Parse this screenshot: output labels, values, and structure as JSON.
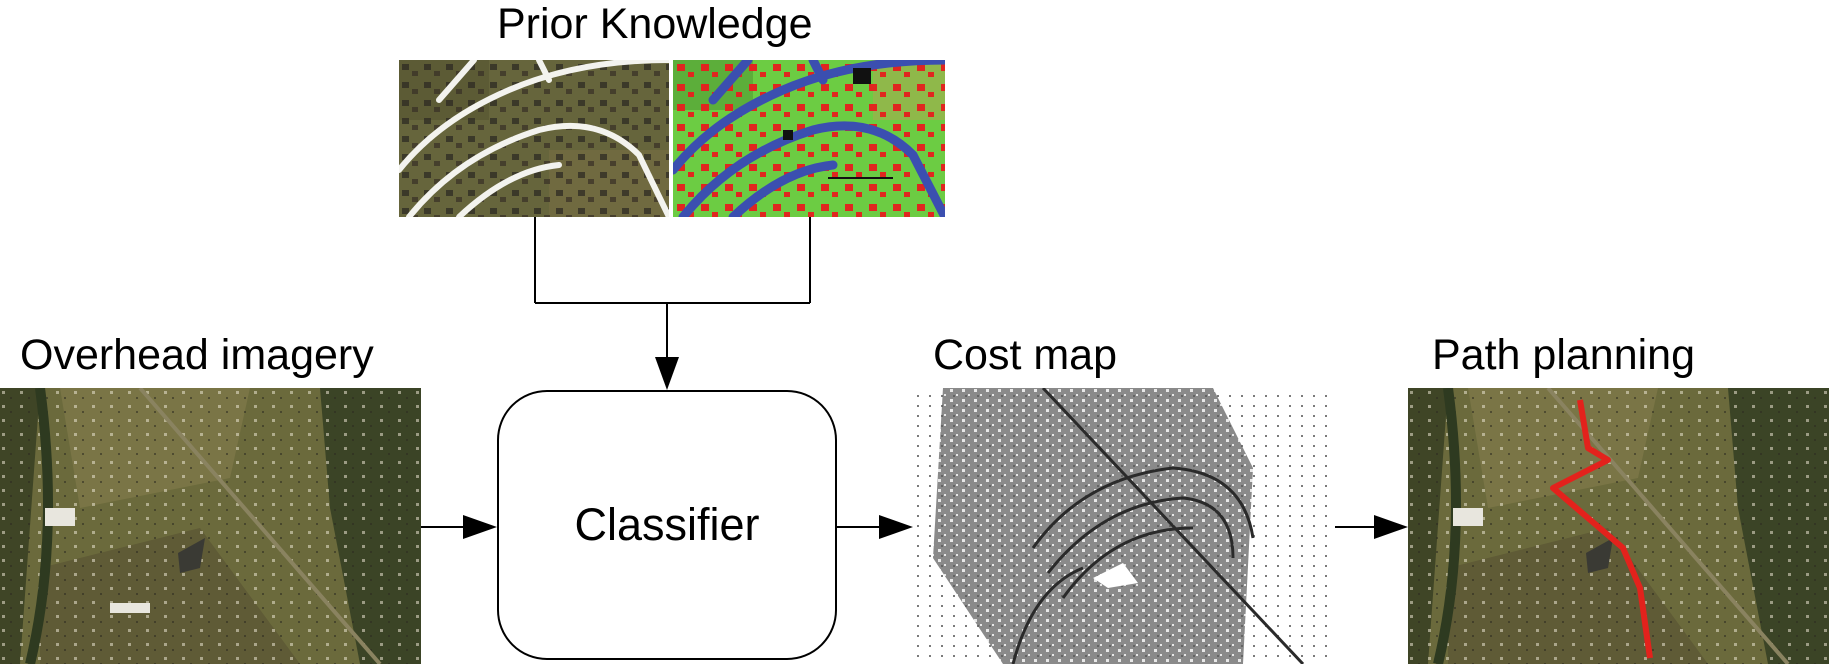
{
  "labels": {
    "prior_knowledge": "Prior Knowledge",
    "overhead_imagery": "Overhead imagery",
    "cost_map": "Cost map",
    "path_planning": "Path planning",
    "classifier": "Classifier"
  },
  "colors": {
    "terrain": "#6b6a3c",
    "terrain_dark": "#3f4526",
    "road_white": "#f3f3ee",
    "house_red": "#e0261f",
    "grass_green": "#6ccc43",
    "road_blue": "#3b4fb0",
    "cost_gray": "#8a8a8a",
    "path_red": "#e3221c"
  }
}
